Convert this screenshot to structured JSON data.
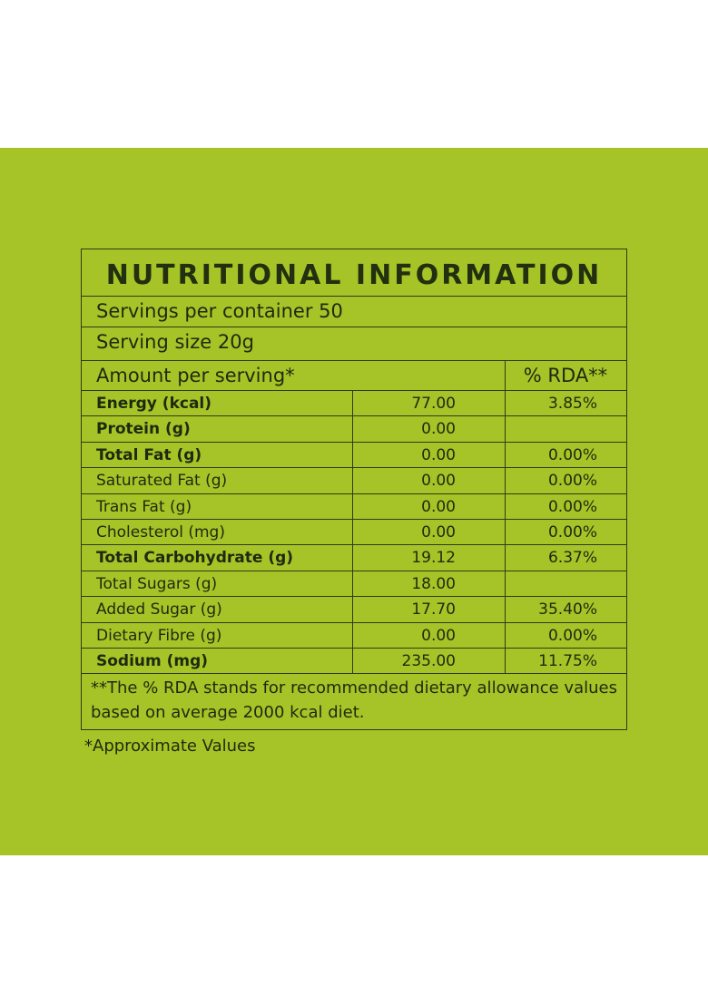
{
  "label": {
    "title": "NUTRITIONAL INFORMATION",
    "servings_per_container": "Servings per container 50",
    "serving_size": "Serving size 20g",
    "amount_per_serving": "Amount per serving*",
    "rda_header": "% RDA**",
    "rows": [
      {
        "name": "Energy (kcal)",
        "value": "77.00",
        "rda": "3.85%",
        "bold": true
      },
      {
        "name": "Protein (g)",
        "value": "0.00",
        "rda": "",
        "bold": true
      },
      {
        "name": "Total Fat (g)",
        "value": "0.00",
        "rda": "0.00%",
        "bold": true
      },
      {
        "name": "Saturated Fat (g)",
        "value": "0.00",
        "rda": "0.00%",
        "bold": false
      },
      {
        "name": "Trans Fat (g)",
        "value": "0.00",
        "rda": "0.00%",
        "bold": false
      },
      {
        "name": "Cholesterol (mg)",
        "value": "0.00",
        "rda": "0.00%",
        "bold": false
      },
      {
        "name": "Total Carbohydrate (g)",
        "value": "19.12",
        "rda": "6.37%",
        "bold": true
      },
      {
        "name": "Total Sugars (g)",
        "value": "18.00",
        "rda": "",
        "bold": false
      },
      {
        "name": "Added  Sugar (g)",
        "value": "17.70",
        "rda": "35.40%",
        "bold": false
      },
      {
        "name": "Dietary Fibre (g)",
        "value": "0.00",
        "rda": "0.00%",
        "bold": false
      },
      {
        "name": "Sodium (mg)",
        "value": "235.00",
        "rda": "11.75%",
        "bold": true
      }
    ],
    "footnote": "**The % RDA stands for recommended dietary allowance values based on average 2000 kcal diet."
  },
  "approx_note": "*Approximate Values",
  "colors": {
    "background": "#a6c427",
    "text": "#1e2a10",
    "border": "#2f3a18"
  }
}
